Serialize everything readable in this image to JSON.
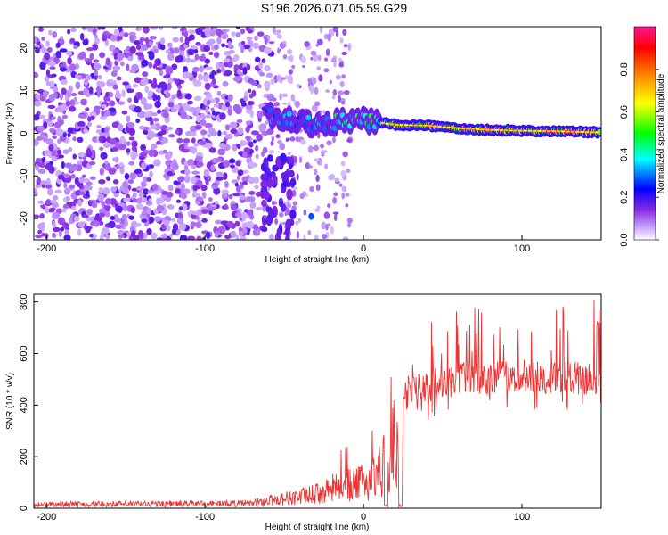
{
  "title": "S196.2026.071.05.59.G29",
  "chart_data": [
    {
      "type": "heatmap",
      "xlabel": "Height of straight line (km)",
      "ylabel": "Frequency (Hz)",
      "xlim": [
        -208,
        150
      ],
      "ylim": [
        -25,
        25
      ],
      "xticks": [
        -200,
        -100,
        0,
        100
      ],
      "xtick_labels": [
        "-200",
        "-100",
        "0",
        "100"
      ],
      "yticks": [
        20,
        10,
        0,
        -10,
        -20
      ],
      "ytick_labels": [
        "20",
        "10",
        "0",
        "-10",
        "-20"
      ],
      "colorbar": {
        "label": "Normalized spectral amplitude",
        "range": [
          0,
          1
        ],
        "ticks": [
          0,
          0.2,
          0.4,
          0.6,
          0.8
        ],
        "tick_labels": [
          "0.0",
          "0.2",
          "0.4",
          "0.6",
          "0.8"
        ],
        "colors": [
          "#ffffff",
          "#9400d3",
          "#0000ff",
          "#00ffff",
          "#00ff00",
          "#ffff00",
          "#ff7f00",
          "#ff0000",
          "#ff1493"
        ]
      },
      "ridge": {
        "description_points_km_hz": [
          [
            -58,
            4
          ],
          [
            -45,
            3
          ],
          [
            -30,
            2
          ],
          [
            -10,
            3
          ],
          [
            0,
            3
          ],
          [
            10,
            2.5
          ],
          [
            20,
            2
          ],
          [
            40,
            1.8
          ],
          [
            60,
            1.2
          ],
          [
            80,
            0.8
          ],
          [
            100,
            0.6
          ],
          [
            120,
            0.5
          ],
          [
            150,
            0.2
          ]
        ]
      }
    },
    {
      "type": "line",
      "xlabel": "Height of straight line (km)",
      "ylabel": "SNR (10 * v/v)",
      "xlim": [
        -208,
        150
      ],
      "ylim": [
        0,
        830
      ],
      "xticks": [
        -200,
        -100,
        0,
        100
      ],
      "xtick_labels": [
        "-200",
        "-100",
        "0",
        "100"
      ],
      "yticks": [
        0,
        200,
        400,
        600,
        800
      ],
      "ytick_labels": [
        "0",
        "200",
        "400",
        "600",
        "800"
      ],
      "color": "#ee3333",
      "envelope_km_snr": [
        [
          -208,
          20
        ],
        [
          -70,
          25
        ],
        [
          -60,
          40
        ],
        [
          -40,
          60
        ],
        [
          -25,
          80
        ],
        [
          -15,
          120
        ],
        [
          -5,
          120
        ],
        [
          5,
          150
        ],
        [
          15,
          250
        ],
        [
          20,
          350
        ],
        [
          25,
          440
        ],
        [
          35,
          470
        ],
        [
          60,
          500
        ],
        [
          100,
          510
        ],
        [
          150,
          500
        ]
      ]
    }
  ]
}
